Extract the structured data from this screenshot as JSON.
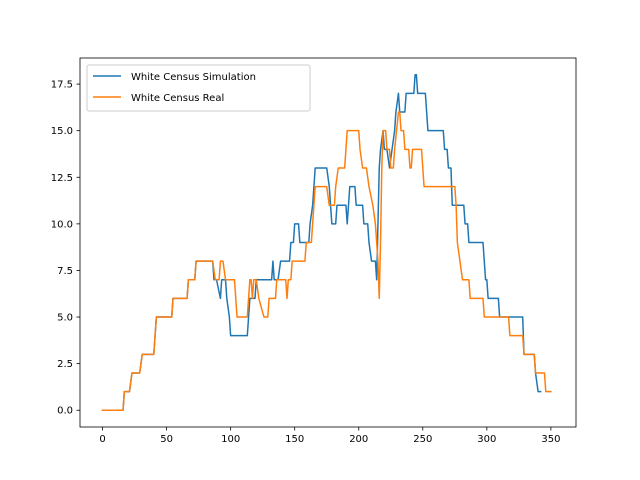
{
  "chart_data": {
    "type": "line",
    "title": "",
    "xlabel": "",
    "ylabel": "",
    "xlim": [
      -17.6,
      369.6
    ],
    "ylim": [
      -0.9,
      18.9
    ],
    "x_ticks": [
      0,
      50,
      100,
      150,
      200,
      250,
      300,
      350
    ],
    "x_tick_labels": [
      "0",
      "50",
      "100",
      "150",
      "200",
      "250",
      "300",
      "350"
    ],
    "y_ticks": [
      0.0,
      2.5,
      5.0,
      7.5,
      10.0,
      12.5,
      15.0,
      17.5
    ],
    "y_tick_labels": [
      "0.0",
      "2.5",
      "5.0",
      "7.5",
      "10.0",
      "12.5",
      "15.0",
      "17.5"
    ],
    "grid": false,
    "legend_position": "upper-left",
    "series": [
      {
        "name": "White Census Simulation",
        "color": "#1f77b4",
        "points": [
          [
            0,
            0
          ],
          [
            16,
            0
          ],
          [
            17,
            1
          ],
          [
            21,
            1
          ],
          [
            23,
            2
          ],
          [
            29,
            2
          ],
          [
            31,
            3
          ],
          [
            40,
            3
          ],
          [
            41,
            4
          ],
          [
            42,
            5
          ],
          [
            54,
            5
          ],
          [
            55,
            6
          ],
          [
            66,
            6
          ],
          [
            67,
            7
          ],
          [
            72,
            7
          ],
          [
            73,
            8
          ],
          [
            86,
            8
          ],
          [
            87,
            7
          ],
          [
            89,
            7
          ],
          [
            92,
            6
          ],
          [
            93,
            7
          ],
          [
            96,
            7
          ],
          [
            97,
            6
          ],
          [
            99,
            5
          ],
          [
            100,
            4
          ],
          [
            113,
            4
          ],
          [
            114,
            5
          ],
          [
            115,
            6
          ],
          [
            119,
            6
          ],
          [
            120,
            7
          ],
          [
            132,
            7
          ],
          [
            133,
            8
          ],
          [
            134,
            7
          ],
          [
            137,
            7
          ],
          [
            139,
            8
          ],
          [
            146,
            8
          ],
          [
            147,
            9
          ],
          [
            149,
            9
          ],
          [
            150,
            10
          ],
          [
            153,
            10
          ],
          [
            154,
            9
          ],
          [
            161,
            9
          ],
          [
            162,
            10
          ],
          [
            164,
            11
          ],
          [
            165,
            12
          ],
          [
            166,
            13
          ],
          [
            175,
            13
          ],
          [
            177,
            12
          ],
          [
            178,
            11
          ],
          [
            179,
            10
          ],
          [
            182,
            10
          ],
          [
            183,
            11
          ],
          [
            184,
            11
          ],
          [
            186,
            11
          ],
          [
            187,
            11
          ],
          [
            190,
            11
          ],
          [
            191,
            10
          ],
          [
            192,
            11
          ],
          [
            193,
            12
          ],
          [
            197,
            12
          ],
          [
            198,
            11
          ],
          [
            203,
            11
          ],
          [
            204,
            10
          ],
          [
            207,
            10
          ],
          [
            208,
            9
          ],
          [
            210,
            8
          ],
          [
            213,
            8
          ],
          [
            214,
            7
          ],
          [
            215,
            10
          ],
          [
            216,
            13
          ],
          [
            217,
            14
          ],
          [
            219,
            15
          ],
          [
            220,
            14
          ],
          [
            222,
            14
          ],
          [
            224,
            13
          ],
          [
            226,
            14
          ],
          [
            228,
            15
          ],
          [
            229,
            16
          ],
          [
            231,
            17
          ],
          [
            232,
            16
          ],
          [
            236,
            16
          ],
          [
            237,
            17
          ],
          [
            243,
            17
          ],
          [
            244,
            18
          ],
          [
            245,
            18
          ],
          [
            246,
            17
          ],
          [
            252,
            17
          ],
          [
            253,
            16
          ],
          [
            254,
            15
          ],
          [
            266,
            15
          ],
          [
            267,
            14
          ],
          [
            269,
            14
          ],
          [
            270,
            13
          ],
          [
            272,
            13
          ],
          [
            273,
            11
          ],
          [
            282,
            11
          ],
          [
            283,
            10
          ],
          [
            285,
            10
          ],
          [
            286,
            9
          ],
          [
            297,
            9
          ],
          [
            298,
            8
          ],
          [
            299,
            7
          ],
          [
            300,
            7
          ],
          [
            301,
            6
          ],
          [
            309,
            6
          ],
          [
            310,
            5
          ],
          [
            328,
            5
          ],
          [
            329,
            3
          ],
          [
            337,
            3
          ],
          [
            338,
            2
          ],
          [
            340,
            1
          ],
          [
            342,
            1
          ]
        ]
      },
      {
        "name": "White Census Real",
        "color": "#ff7f0e",
        "points": [
          [
            0,
            0
          ],
          [
            16,
            0
          ],
          [
            17,
            1
          ],
          [
            21,
            1
          ],
          [
            23,
            2
          ],
          [
            29,
            2
          ],
          [
            31,
            3
          ],
          [
            40,
            3
          ],
          [
            41,
            4
          ],
          [
            42,
            5
          ],
          [
            54,
            5
          ],
          [
            55,
            6
          ],
          [
            66,
            6
          ],
          [
            67,
            7
          ],
          [
            72,
            7
          ],
          [
            73,
            8
          ],
          [
            86,
            8
          ],
          [
            88,
            7
          ],
          [
            91,
            7
          ],
          [
            92,
            8
          ],
          [
            94,
            8
          ],
          [
            96,
            7
          ],
          [
            103,
            7
          ],
          [
            104,
            6
          ],
          [
            105,
            5
          ],
          [
            113,
            5
          ],
          [
            114,
            6
          ],
          [
            115,
            7
          ],
          [
            116,
            7
          ],
          [
            117,
            6
          ],
          [
            118,
            7
          ],
          [
            120,
            7
          ],
          [
            122,
            6
          ],
          [
            126,
            5
          ],
          [
            129,
            5
          ],
          [
            130,
            6
          ],
          [
            135,
            6
          ],
          [
            136,
            7
          ],
          [
            143,
            7
          ],
          [
            144,
            6
          ],
          [
            145,
            7
          ],
          [
            147,
            7
          ],
          [
            148,
            8
          ],
          [
            158,
            8
          ],
          [
            159,
            9
          ],
          [
            163,
            9
          ],
          [
            164,
            10
          ],
          [
            165,
            11
          ],
          [
            166,
            12
          ],
          [
            175,
            12
          ],
          [
            177,
            11
          ],
          [
            181,
            11
          ],
          [
            182,
            12
          ],
          [
            184,
            13
          ],
          [
            189,
            13
          ],
          [
            190,
            14
          ],
          [
            191,
            15
          ],
          [
            200,
            15
          ],
          [
            201,
            14
          ],
          [
            203,
            13
          ],
          [
            206,
            13
          ],
          [
            208,
            12
          ],
          [
            211,
            11
          ],
          [
            213,
            10
          ],
          [
            215,
            8
          ],
          [
            216,
            6
          ],
          [
            217,
            9
          ],
          [
            218,
            13
          ],
          [
            219,
            15
          ],
          [
            221,
            15
          ],
          [
            222,
            14
          ],
          [
            224,
            14
          ],
          [
            225,
            13
          ],
          [
            227,
            13
          ],
          [
            228,
            14
          ],
          [
            231,
            16
          ],
          [
            232,
            16
          ],
          [
            233,
            15
          ],
          [
            235,
            15
          ],
          [
            236,
            14
          ],
          [
            239,
            14
          ],
          [
            240,
            13
          ],
          [
            241,
            13
          ],
          [
            242,
            14
          ],
          [
            249,
            14
          ],
          [
            250,
            13
          ],
          [
            251,
            12
          ],
          [
            275,
            12
          ],
          [
            276,
            11
          ],
          [
            277,
            9
          ],
          [
            279,
            8
          ],
          [
            281,
            7
          ],
          [
            286,
            7
          ],
          [
            287,
            6
          ],
          [
            297,
            6
          ],
          [
            298,
            5
          ],
          [
            317,
            5
          ],
          [
            318,
            4
          ],
          [
            328,
            4
          ],
          [
            329,
            3
          ],
          [
            337,
            3
          ],
          [
            338,
            2
          ],
          [
            345,
            2
          ],
          [
            346,
            1
          ],
          [
            350,
            1
          ]
        ]
      }
    ]
  }
}
